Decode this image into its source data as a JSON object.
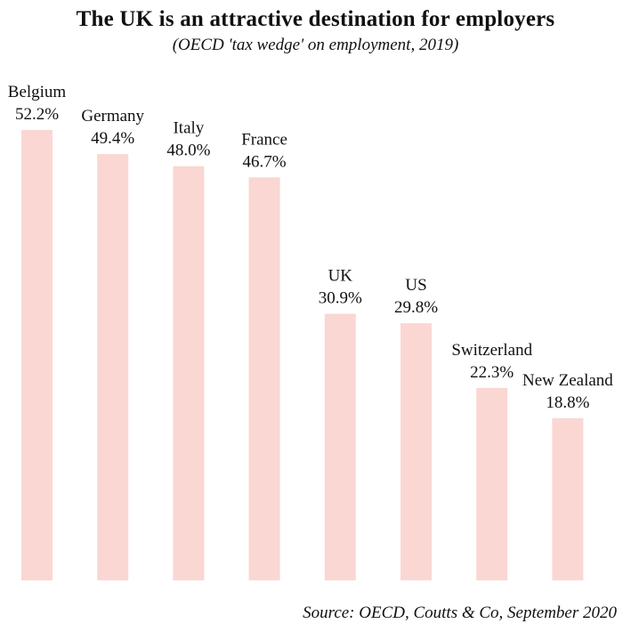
{
  "chart_data": {
    "type": "bar",
    "title": "The UK is an attractive destination for employers",
    "subtitle": "(OECD 'tax wedge' on employment, 2019)",
    "source": "Source: OECD, Coutts & Co, September 2020",
    "categories": [
      "Belgium",
      "Germany",
      "Italy",
      "France",
      "UK",
      "US",
      "Switzerland",
      "New Zealand"
    ],
    "values": [
      52.2,
      49.4,
      48.0,
      46.7,
      30.9,
      29.8,
      22.3,
      18.8
    ],
    "value_labels": [
      "52.2%",
      "49.4%",
      "48.0%",
      "46.7%",
      "30.9%",
      "29.8%",
      "22.3%",
      "18.8%"
    ],
    "ylim": [
      0,
      52.2
    ],
    "grid": false,
    "legend": "none",
    "bar_color": "#fad7d2",
    "text_color": "#111111"
  }
}
